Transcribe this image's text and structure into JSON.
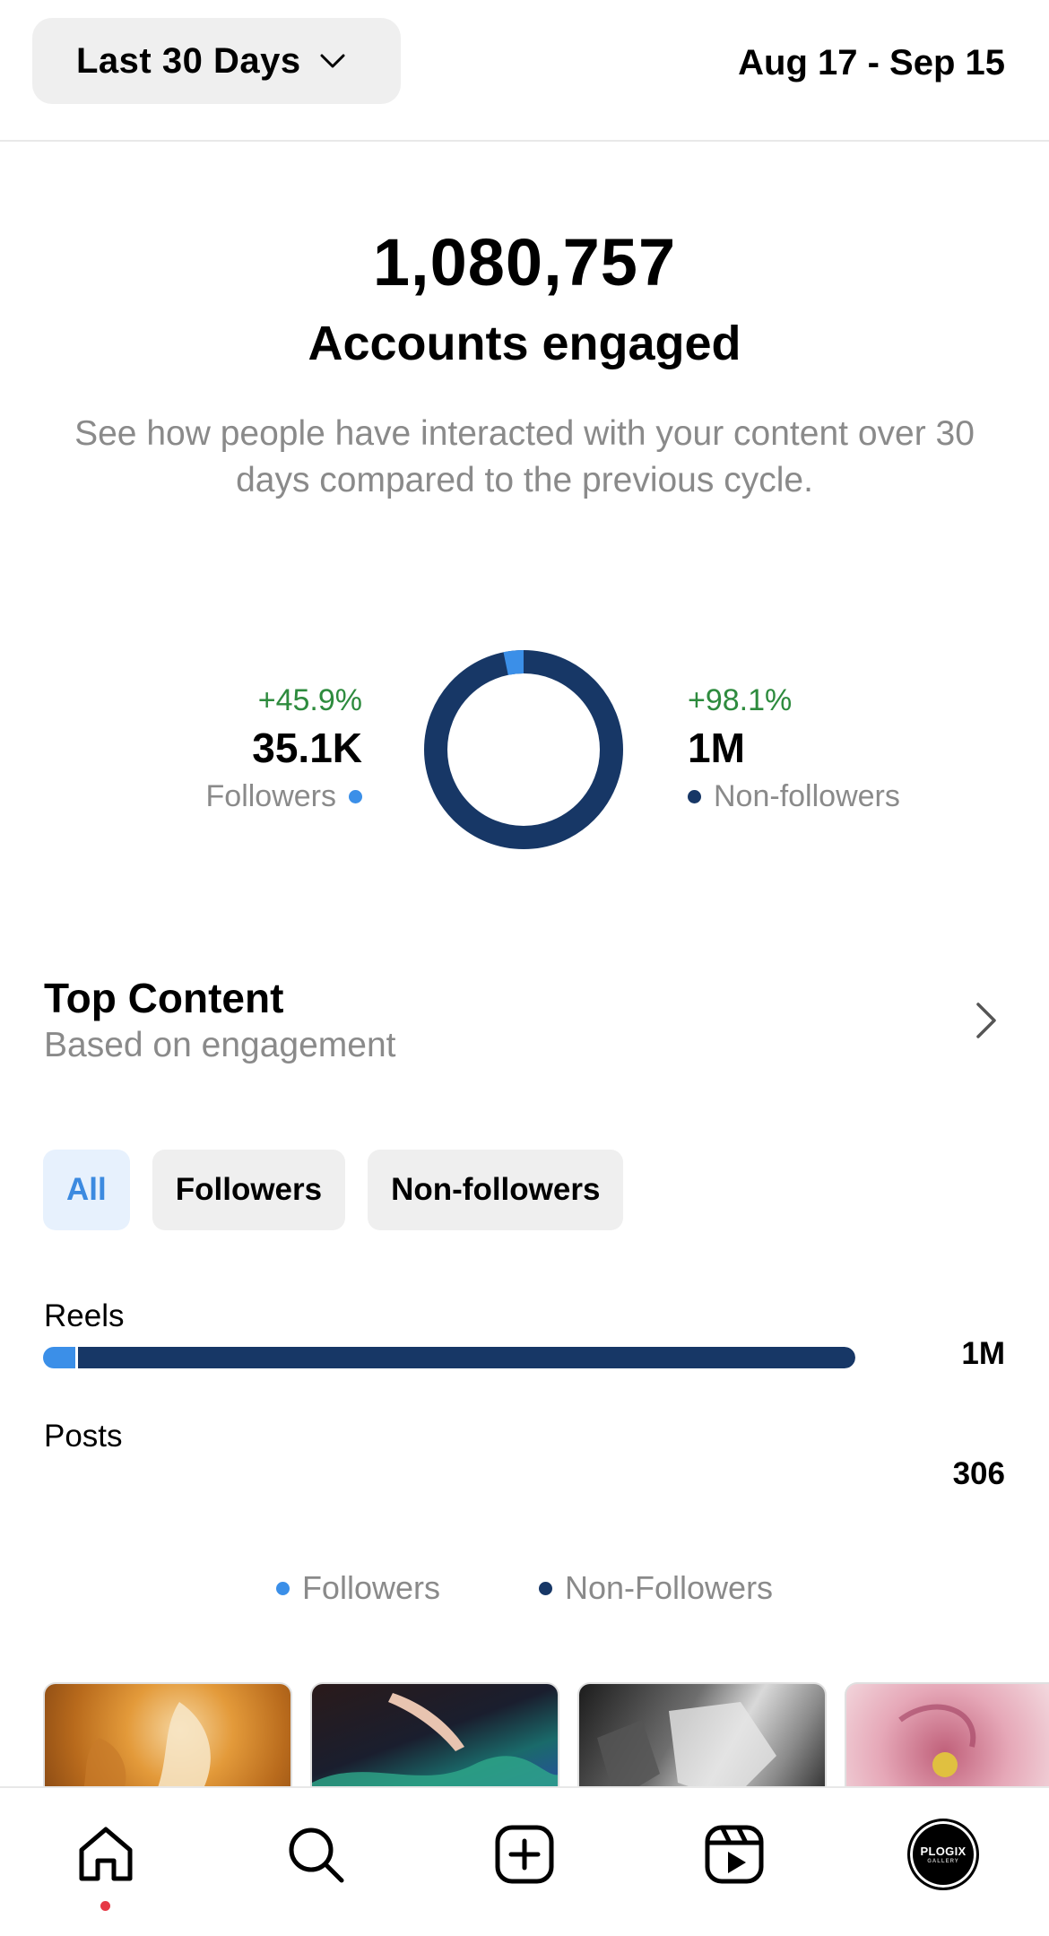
{
  "header": {
    "range_label": "Last 30 Days",
    "date_range": "Aug 17 - Sep 15"
  },
  "summary": {
    "total": "1,080,757",
    "label": "Accounts engaged",
    "description": "See how people have interacted with your content over 30 days compared to the previous cycle."
  },
  "breakdown": {
    "followers": {
      "change": "+45.9%",
      "value": "35.1K",
      "label": "Followers",
      "color": "#3b8fe8",
      "share": 0.0325
    },
    "non_followers": {
      "change": "+98.1%",
      "value": "1M",
      "label": "Non-followers",
      "color": "#173766",
      "share": 0.9675
    }
  },
  "top_content": {
    "title": "Top Content",
    "subtitle": "Based on engagement",
    "filters": [
      {
        "label": "All",
        "active": true
      },
      {
        "label": "Followers",
        "active": false
      },
      {
        "label": "Non-followers",
        "active": false
      }
    ],
    "bars": [
      {
        "label": "Reels",
        "value": "1M",
        "follower_fraction": 0.04,
        "total_fraction": 1.0
      },
      {
        "label": "Posts",
        "value": "306",
        "follower_fraction": 0.0,
        "total_fraction": 0.0
      }
    ],
    "legend": [
      {
        "label": "Followers",
        "color": "#3b8fe8"
      },
      {
        "label": "Non-Followers",
        "color": "#173766"
      }
    ]
  },
  "bottom_nav": {
    "avatar_text": "PLOGIX",
    "avatar_subtext": "GALLERY",
    "icons": [
      "home-icon",
      "search-icon",
      "create-icon",
      "reels-icon",
      "profile-avatar"
    ]
  }
}
